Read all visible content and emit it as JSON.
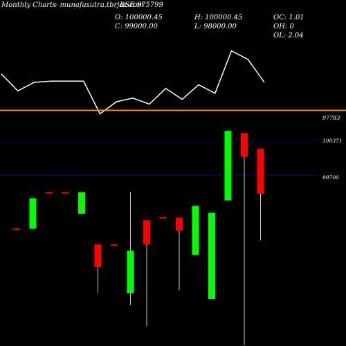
{
  "header": {
    "title": "Monthly Charts",
    "site": "- munafasutra.tbrjaz.com",
    "symbol": "BSE 975799"
  },
  "ohlc": {
    "open": "O: 100000.45",
    "high": "H: 100000.45",
    "oc": "OC: 1.01",
    "close": "C: 99000.00",
    "low": "L: 98000.00",
    "oh": "OH: 0",
    "ol": "OL: 2.04"
  },
  "colors": {
    "background": "#000000",
    "up": "#00ff00",
    "down": "#ff0000",
    "line": "#ffffff",
    "average_line": "#ff8c00",
    "gridline": "#000080"
  },
  "chart_data": [
    {
      "type": "line",
      "level_label": "97783",
      "values": [
        69,
        55,
        62,
        63,
        63,
        63,
        36,
        46,
        49,
        44,
        57,
        48,
        60,
        53,
        88,
        81,
        62
      ]
    },
    {
      "type": "candlestick",
      "y_ticks": [
        "100371",
        "99700"
      ],
      "candles": [
        {
          "open": 96130,
          "high": 96130,
          "low": 96120,
          "close": 96120
        },
        {
          "open": 96120,
          "high": 97480,
          "low": 96120,
          "close": 97480
        },
        {
          "open": 97750,
          "high": 97750,
          "low": 97720,
          "close": 97720
        },
        {
          "open": 97750,
          "high": 97750,
          "low": 97720,
          "close": 97720
        },
        {
          "open": 96790,
          "high": 97750,
          "low": 96790,
          "close": 97750
        },
        {
          "open": 95420,
          "high": 95420,
          "low": 93250,
          "close": 94410
        },
        {
          "open": 95420,
          "high": 95420,
          "low": 95380,
          "close": 95380
        },
        {
          "open": 93250,
          "high": 97750,
          "low": 92720,
          "close": 95140
        },
        {
          "open": 96500,
          "high": 96500,
          "low": 91780,
          "close": 95420
        },
        {
          "open": 96640,
          "high": 96640,
          "low": 96610,
          "close": 96610
        },
        {
          "open": 96610,
          "high": 96610,
          "low": 93390,
          "close": 96040
        },
        {
          "open": 94950,
          "high": 97140,
          "low": 94950,
          "close": 97140
        },
        {
          "open": 92990,
          "high": 96830,
          "low": 92990,
          "close": 96830
        },
        {
          "open": 97380,
          "high": 100480,
          "low": 97380,
          "close": 100480
        },
        {
          "open": 100370,
          "high": 100370,
          "low": 90950,
          "close": 99320
        },
        {
          "open": 99680,
          "high": 99680,
          "low": 95610,
          "close": 97680
        }
      ]
    }
  ]
}
